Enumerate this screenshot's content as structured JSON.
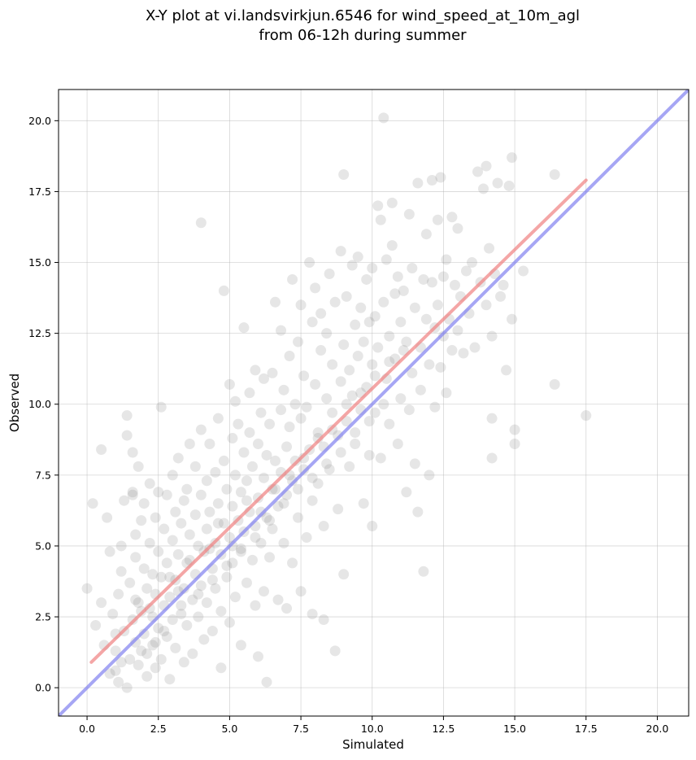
{
  "chart_data": {
    "type": "scatter",
    "title": "X-Y plot at vi.landsvirkjun.6546 for wind_speed_at_10m_agl",
    "subtitle": "from 06-12h during summer",
    "xlabel": "Simulated",
    "ylabel": "Observed",
    "xlim": [
      -1.0,
      21.1
    ],
    "ylim": [
      -1.0,
      21.1
    ],
    "xticks": [
      "0.0",
      "2.5",
      "5.0",
      "7.5",
      "10.0",
      "12.5",
      "15.0",
      "17.5",
      "20.0"
    ],
    "yticks": [
      "0.0",
      "2.5",
      "5.0",
      "7.5",
      "10.0",
      "12.5",
      "15.0",
      "17.5",
      "20.0"
    ],
    "grid": true,
    "colors": {
      "points": "#808080",
      "fit_line": "#f08080",
      "identity_line": "#8080f0"
    },
    "fit_line": {
      "x": [
        0.15,
        17.5
      ],
      "y": [
        0.9,
        17.9
      ]
    },
    "identity_line": {
      "x": [
        -1.0,
        21.1
      ],
      "y": [
        -1.0,
        21.1
      ]
    },
    "points": [
      [
        0.0,
        3.5
      ],
      [
        0.2,
        6.5
      ],
      [
        0.3,
        2.2
      ],
      [
        0.5,
        8.4
      ],
      [
        0.5,
        3.0
      ],
      [
        0.6,
        1.5
      ],
      [
        0.7,
        6.0
      ],
      [
        0.8,
        4.8
      ],
      [
        0.9,
        2.6
      ],
      [
        1.0,
        0.6
      ],
      [
        1.0,
        1.3
      ],
      [
        1.1,
        3.3
      ],
      [
        1.1,
        0.2
      ],
      [
        1.2,
        4.1
      ],
      [
        1.2,
        5.0
      ],
      [
        1.3,
        2.0
      ],
      [
        1.3,
        6.6
      ],
      [
        1.4,
        0.0
      ],
      [
        1.4,
        8.9
      ],
      [
        1.4,
        9.6
      ],
      [
        1.5,
        1.0
      ],
      [
        1.5,
        3.7
      ],
      [
        1.6,
        6.9
      ],
      [
        1.6,
        2.4
      ],
      [
        1.6,
        8.3
      ],
      [
        1.7,
        1.6
      ],
      [
        1.7,
        5.4
      ],
      [
        1.7,
        4.6
      ],
      [
        1.8,
        7.8
      ],
      [
        1.8,
        3.0
      ],
      [
        1.8,
        0.8
      ],
      [
        1.9,
        2.7
      ],
      [
        1.9,
        5.9
      ],
      [
        2.0,
        1.9
      ],
      [
        2.0,
        4.2
      ],
      [
        2.0,
        6.5
      ],
      [
        2.1,
        0.4
      ],
      [
        2.1,
        3.5
      ],
      [
        2.1,
        1.2
      ],
      [
        2.2,
        7.2
      ],
      [
        2.2,
        5.1
      ],
      [
        2.2,
        2.8
      ],
      [
        2.3,
        4.0
      ],
      [
        2.3,
        1.5
      ],
      [
        2.4,
        6.0
      ],
      [
        2.4,
        3.3
      ],
      [
        2.4,
        0.7
      ],
      [
        2.5,
        6.9
      ],
      [
        2.5,
        2.1
      ],
      [
        2.5,
        4.8
      ],
      [
        2.6,
        9.9
      ],
      [
        2.6,
        3.9
      ],
      [
        2.6,
        1.0
      ],
      [
        2.7,
        5.6
      ],
      [
        2.7,
        2.9
      ],
      [
        2.8,
        6.8
      ],
      [
        2.8,
        1.8
      ],
      [
        2.8,
        4.4
      ],
      [
        2.9,
        3.2
      ],
      [
        2.9,
        0.3
      ],
      [
        3.0,
        7.5
      ],
      [
        3.0,
        5.2
      ],
      [
        3.0,
        2.4
      ],
      [
        3.1,
        6.2
      ],
      [
        3.1,
        3.8
      ],
      [
        3.1,
        1.4
      ],
      [
        3.2,
        4.7
      ],
      [
        3.2,
        8.1
      ],
      [
        3.3,
        2.9
      ],
      [
        3.3,
        5.8
      ],
      [
        3.4,
        0.9
      ],
      [
        3.4,
        3.5
      ],
      [
        3.4,
        6.6
      ],
      [
        3.5,
        4.4
      ],
      [
        3.5,
        7.0
      ],
      [
        3.5,
        2.2
      ],
      [
        3.6,
        5.4
      ],
      [
        3.6,
        8.6
      ],
      [
        3.7,
        3.1
      ],
      [
        3.7,
        1.2
      ],
      [
        3.8,
        6.1
      ],
      [
        3.8,
        4.0
      ],
      [
        3.8,
        7.8
      ],
      [
        3.9,
        2.5
      ],
      [
        3.9,
        5.0
      ],
      [
        4.0,
        16.4
      ],
      [
        4.0,
        3.6
      ],
      [
        4.0,
        6.8
      ],
      [
        4.0,
        9.1
      ],
      [
        4.1,
        4.8
      ],
      [
        4.1,
        1.7
      ],
      [
        4.2,
        7.3
      ],
      [
        4.2,
        5.6
      ],
      [
        4.2,
        3.0
      ],
      [
        4.3,
        6.2
      ],
      [
        4.3,
        8.6
      ],
      [
        4.4,
        4.2
      ],
      [
        4.4,
        2.0
      ],
      [
        4.5,
        7.6
      ],
      [
        4.5,
        5.1
      ],
      [
        4.5,
        3.5
      ],
      [
        4.6,
        9.5
      ],
      [
        4.6,
        6.5
      ],
      [
        4.7,
        4.7
      ],
      [
        4.7,
        0.7
      ],
      [
        4.7,
        2.7
      ],
      [
        4.8,
        8.0
      ],
      [
        4.8,
        5.8
      ],
      [
        4.8,
        14.0
      ],
      [
        4.9,
        3.9
      ],
      [
        4.9,
        7.0
      ],
      [
        5.0,
        10.7
      ],
      [
        5.0,
        5.3
      ],
      [
        5.0,
        2.3
      ],
      [
        5.1,
        6.4
      ],
      [
        5.1,
        8.8
      ],
      [
        5.1,
        4.4
      ],
      [
        5.2,
        7.5
      ],
      [
        5.2,
        10.1
      ],
      [
        5.2,
        3.2
      ],
      [
        5.3,
        5.9
      ],
      [
        5.3,
        9.3
      ],
      [
        5.4,
        6.9
      ],
      [
        5.4,
        4.8
      ],
      [
        5.4,
        1.5
      ],
      [
        5.5,
        8.3
      ],
      [
        5.5,
        12.7
      ],
      [
        5.5,
        5.5
      ],
      [
        5.6,
        7.3
      ],
      [
        5.6,
        3.7
      ],
      [
        5.7,
        10.4
      ],
      [
        5.7,
        6.2
      ],
      [
        5.7,
        9.0
      ],
      [
        5.8,
        4.5
      ],
      [
        5.8,
        7.8
      ],
      [
        5.9,
        5.7
      ],
      [
        5.9,
        11.2
      ],
      [
        5.9,
        2.9
      ],
      [
        6.0,
        8.6
      ],
      [
        6.0,
        6.7
      ],
      [
        6.0,
        1.1
      ],
      [
        6.1,
        9.7
      ],
      [
        6.1,
        5.1
      ],
      [
        6.2,
        7.4
      ],
      [
        6.2,
        3.4
      ],
      [
        6.2,
        10.9
      ],
      [
        6.3,
        6.0
      ],
      [
        6.3,
        8.2
      ],
      [
        6.3,
        0.2
      ],
      [
        6.4,
        4.6
      ],
      [
        6.4,
        9.3
      ],
      [
        6.5,
        7.0
      ],
      [
        6.5,
        11.1
      ],
      [
        6.5,
        5.6
      ],
      [
        6.6,
        13.6
      ],
      [
        6.6,
        8.0
      ],
      [
        6.7,
        6.4
      ],
      [
        6.7,
        3.1
      ],
      [
        6.8,
        9.8
      ],
      [
        6.8,
        7.6
      ],
      [
        6.8,
        12.6
      ],
      [
        6.9,
        5.1
      ],
      [
        6.9,
        10.5
      ],
      [
        7.0,
        8.5
      ],
      [
        7.0,
        6.8
      ],
      [
        7.0,
        2.8
      ],
      [
        7.1,
        11.7
      ],
      [
        7.1,
        9.2
      ],
      [
        7.2,
        14.4
      ],
      [
        7.2,
        7.3
      ],
      [
        7.2,
        4.4
      ],
      [
        7.3,
        10.0
      ],
      [
        7.3,
        8.0
      ],
      [
        7.4,
        6.0
      ],
      [
        7.4,
        12.2
      ],
      [
        7.5,
        9.5
      ],
      [
        7.5,
        13.5
      ],
      [
        7.5,
        3.4
      ],
      [
        7.6,
        7.7
      ],
      [
        7.6,
        11.0
      ],
      [
        7.7,
        5.3
      ],
      [
        7.7,
        9.9
      ],
      [
        7.8,
        15.0
      ],
      [
        7.8,
        8.4
      ],
      [
        7.9,
        12.9
      ],
      [
        7.9,
        6.6
      ],
      [
        7.9,
        2.6
      ],
      [
        8.0,
        10.7
      ],
      [
        8.0,
        14.1
      ],
      [
        8.1,
        9.0
      ],
      [
        8.1,
        7.2
      ],
      [
        8.2,
        11.9
      ],
      [
        8.2,
        13.2
      ],
      [
        8.3,
        8.5
      ],
      [
        8.3,
        5.7
      ],
      [
        8.3,
        2.4
      ],
      [
        8.4,
        10.2
      ],
      [
        8.4,
        12.5
      ],
      [
        8.5,
        14.6
      ],
      [
        8.5,
        7.7
      ],
      [
        8.6,
        9.7
      ],
      [
        8.6,
        11.4
      ],
      [
        8.7,
        1.3
      ],
      [
        8.7,
        13.6
      ],
      [
        8.8,
        8.9
      ],
      [
        8.8,
        6.3
      ],
      [
        8.9,
        15.4
      ],
      [
        8.9,
        10.8
      ],
      [
        9.0,
        12.1
      ],
      [
        9.0,
        18.1
      ],
      [
        9.0,
        4.0
      ],
      [
        9.1,
        9.4
      ],
      [
        9.1,
        13.8
      ],
      [
        9.2,
        11.2
      ],
      [
        9.2,
        7.8
      ],
      [
        9.3,
        14.9
      ],
      [
        9.3,
        10.3
      ],
      [
        9.4,
        12.8
      ],
      [
        9.4,
        8.6
      ],
      [
        9.5,
        15.2
      ],
      [
        9.5,
        11.7
      ],
      [
        9.6,
        13.4
      ],
      [
        9.6,
        9.8
      ],
      [
        9.7,
        6.5
      ],
      [
        9.7,
        12.2
      ],
      [
        9.8,
        14.4
      ],
      [
        9.8,
        10.6
      ],
      [
        9.9,
        8.2
      ],
      [
        9.9,
        12.9
      ],
      [
        10.0,
        14.8
      ],
      [
        10.0,
        11.4
      ],
      [
        10.0,
        5.7
      ],
      [
        10.1,
        13.1
      ],
      [
        10.1,
        9.7
      ],
      [
        10.2,
        17.0
      ],
      [
        10.2,
        12.0
      ],
      [
        10.3,
        16.5
      ],
      [
        10.3,
        8.1
      ],
      [
        10.4,
        20.1
      ],
      [
        10.4,
        13.6
      ],
      [
        10.5,
        10.9
      ],
      [
        10.5,
        15.1
      ],
      [
        10.6,
        12.4
      ],
      [
        10.6,
        9.3
      ],
      [
        10.7,
        17.1
      ],
      [
        10.7,
        15.6
      ],
      [
        10.8,
        11.6
      ],
      [
        10.8,
        13.9
      ],
      [
        10.9,
        8.6
      ],
      [
        10.9,
        14.5
      ],
      [
        11.0,
        12.9
      ],
      [
        11.0,
        10.2
      ],
      [
        11.1,
        14.0
      ],
      [
        11.2,
        6.9
      ],
      [
        11.2,
        12.2
      ],
      [
        11.3,
        16.7
      ],
      [
        11.3,
        9.8
      ],
      [
        11.4,
        14.8
      ],
      [
        11.4,
        11.1
      ],
      [
        11.5,
        7.9
      ],
      [
        11.5,
        13.4
      ],
      [
        11.6,
        6.2
      ],
      [
        11.6,
        17.8
      ],
      [
        11.7,
        12.0
      ],
      [
        11.7,
        10.5
      ],
      [
        11.8,
        4.1
      ],
      [
        11.8,
        14.4
      ],
      [
        11.9,
        13.0
      ],
      [
        11.9,
        16.0
      ],
      [
        12.0,
        11.4
      ],
      [
        12.0,
        7.5
      ],
      [
        12.1,
        14.3
      ],
      [
        12.1,
        17.9
      ],
      [
        12.2,
        12.7
      ],
      [
        12.2,
        9.9
      ],
      [
        12.3,
        16.5
      ],
      [
        12.3,
        13.5
      ],
      [
        12.4,
        11.3
      ],
      [
        12.4,
        18.0
      ],
      [
        12.5,
        14.5
      ],
      [
        12.5,
        12.4
      ],
      [
        12.6,
        15.1
      ],
      [
        12.6,
        10.4
      ],
      [
        12.7,
        13.0
      ],
      [
        12.8,
        16.6
      ],
      [
        12.8,
        11.9
      ],
      [
        12.9,
        14.2
      ],
      [
        13.0,
        12.6
      ],
      [
        13.0,
        16.2
      ],
      [
        13.1,
        13.8
      ],
      [
        13.2,
        11.8
      ],
      [
        13.3,
        14.7
      ],
      [
        13.4,
        13.2
      ],
      [
        13.5,
        15.0
      ],
      [
        13.6,
        12.0
      ],
      [
        13.7,
        18.2
      ],
      [
        13.8,
        14.3
      ],
      [
        13.9,
        17.6
      ],
      [
        14.0,
        13.5
      ],
      [
        14.0,
        18.4
      ],
      [
        14.1,
        15.5
      ],
      [
        14.2,
        12.4
      ],
      [
        14.2,
        9.5
      ],
      [
        14.3,
        14.6
      ],
      [
        14.4,
        17.8
      ],
      [
        14.5,
        13.8
      ],
      [
        14.6,
        14.2
      ],
      [
        14.7,
        11.2
      ],
      [
        14.8,
        17.7
      ],
      [
        14.9,
        18.7
      ],
      [
        14.9,
        13.0
      ],
      [
        15.0,
        9.1
      ],
      [
        15.0,
        8.6
      ],
      [
        15.3,
        14.7
      ],
      [
        14.2,
        8.1
      ],
      [
        16.4,
        18.1
      ],
      [
        16.4,
        10.7
      ],
      [
        17.5,
        9.6
      ],
      [
        1.6,
        6.8
      ],
      [
        1.0,
        1.9
      ],
      [
        1.7,
        3.1
      ],
      [
        2.3,
        2.5
      ],
      [
        2.9,
        3.9
      ],
      [
        3.2,
        3.4
      ],
      [
        3.6,
        4.5
      ],
      [
        4.3,
        4.9
      ],
      [
        4.6,
        5.8
      ],
      [
        5.1,
        5.0
      ],
      [
        5.6,
        6.6
      ],
      [
        6.1,
        6.2
      ],
      [
        6.6,
        7.0
      ],
      [
        7.1,
        7.5
      ],
      [
        7.6,
        8.1
      ],
      [
        8.1,
        8.8
      ],
      [
        8.6,
        9.1
      ],
      [
        9.1,
        10.0
      ],
      [
        9.6,
        10.4
      ],
      [
        10.1,
        11.0
      ],
      [
        10.6,
        11.5
      ],
      [
        11.1,
        11.9
      ],
      [
        0.8,
        0.5
      ],
      [
        1.2,
        0.9
      ],
      [
        1.9,
        1.3
      ],
      [
        2.4,
        1.6
      ],
      [
        2.7,
        2.0
      ],
      [
        3.3,
        2.6
      ],
      [
        3.9,
        3.3
      ],
      [
        4.4,
        3.8
      ],
      [
        4.9,
        4.3
      ],
      [
        5.4,
        4.9
      ],
      [
        5.9,
        5.3
      ],
      [
        6.4,
        5.9
      ],
      [
        6.9,
        6.5
      ],
      [
        7.4,
        7.0
      ],
      [
        7.9,
        7.4
      ],
      [
        8.4,
        7.9
      ],
      [
        8.9,
        8.3
      ],
      [
        9.4,
        9.0
      ],
      [
        9.9,
        9.4
      ],
      [
        10.4,
        10.0
      ]
    ]
  }
}
